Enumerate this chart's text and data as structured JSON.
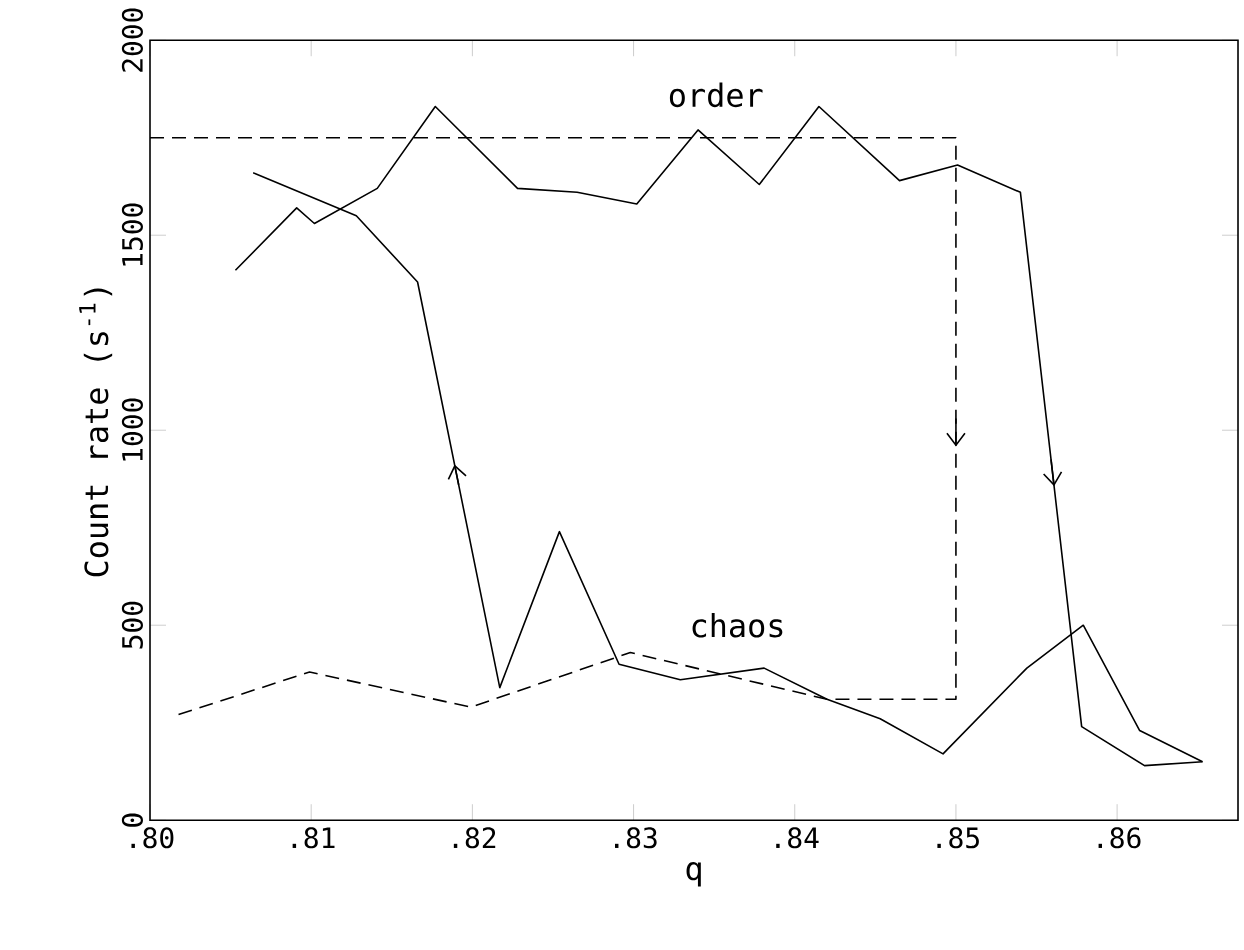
{
  "chart_data": {
    "type": "line",
    "xlabel": "q",
    "ylabel": "Count rate (s$^{-1}$)",
    "xlim": [
      0.8,
      0.8675
    ],
    "ylim": [
      0,
      2000
    ],
    "xticks": [
      {
        "value": 0.8,
        "label": ".80"
      },
      {
        "value": 0.81,
        "label": ".81"
      },
      {
        "value": 0.82,
        "label": ".82"
      },
      {
        "value": 0.83,
        "label": ".83"
      },
      {
        "value": 0.84,
        "label": ".84"
      },
      {
        "value": 0.85,
        "label": ".85"
      },
      {
        "value": 0.86,
        "label": ".86"
      }
    ],
    "yticks": [
      0,
      500,
      1000,
      1500,
      2000
    ],
    "series": [
      {
        "color": "#000000",
        "line_style": "solid",
        "x": [
          0.8053,
          0.8091,
          0.8102,
          0.8141,
          0.8177,
          0.8228,
          0.8265,
          0.8302,
          0.834,
          0.8378,
          0.8415,
          0.8465,
          0.8501,
          0.854,
          0.8578,
          0.8617,
          0.8653
        ],
        "values": [
          1410,
          1570,
          1530,
          1620,
          1830,
          1620,
          1610,
          1580,
          1770,
          1630,
          1830,
          1640,
          1680,
          1610,
          240,
          140,
          150
        ]
      },
      {
        "color": "#000000",
        "line_style": "solid",
        "x": [
          0.8653,
          0.8614,
          0.8579,
          0.8544,
          0.8492,
          0.8453,
          0.842,
          0.8381,
          0.8329,
          0.8291,
          0.8254,
          0.8217,
          0.8166,
          0.8128,
          0.8064
        ],
        "values": [
          150,
          230,
          500,
          390,
          170,
          260,
          310,
          390,
          360,
          400,
          740,
          340,
          1380,
          1550,
          1660
        ]
      },
      {
        "color": "#000000",
        "line_style": "dashed",
        "x": [
          0.8,
          0.85,
          0.85,
          0.842,
          0.8298,
          0.8199,
          0.8099,
          0.8017
        ],
        "values": [
          1750,
          1750,
          310,
          310,
          430,
          290,
          380,
          270
        ]
      }
    ],
    "annotations": [
      "order",
      "chaos"
    ]
  }
}
